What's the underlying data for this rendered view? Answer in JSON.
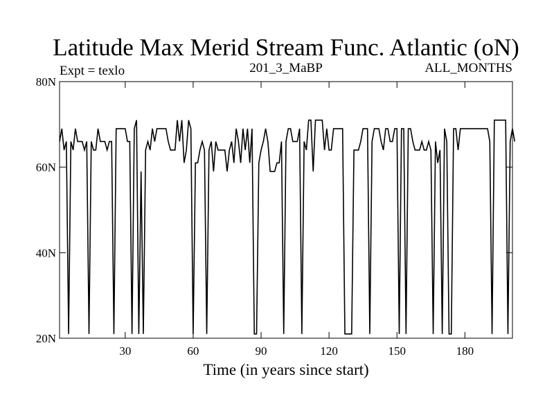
{
  "chart_data": {
    "type": "line",
    "title": "Latitude Max Merid Stream Func. Atlantic (oN)",
    "left_label": "Expt = texlo",
    "center_label": "201_3_MaBP",
    "right_label": "ALL_MONTHS",
    "xlabel": "Time (in years since start)",
    "ylabel": "",
    "xlim": [
      1,
      201
    ],
    "ylim": [
      20,
      80
    ],
    "x_ticks": [
      30,
      60,
      90,
      120,
      150,
      180
    ],
    "y_ticks": [
      20,
      40,
      60,
      80
    ],
    "y_tick_labels": [
      "20N",
      "40N",
      "60N",
      "80N"
    ],
    "grid": false,
    "series": [
      {
        "values": [
          66,
          69,
          64,
          66,
          21,
          66,
          64,
          69,
          66,
          66,
          66,
          64,
          66,
          21,
          66,
          64,
          64,
          69,
          66,
          66,
          66,
          64,
          66,
          66,
          21,
          69,
          69,
          69,
          69,
          69,
          66,
          66,
          21,
          69,
          71,
          21,
          59,
          21,
          64,
          66,
          64,
          69,
          66,
          69,
          69,
          69,
          69,
          69,
          66,
          64,
          64,
          64,
          71,
          66,
          71,
          61,
          64,
          71,
          69,
          21,
          61,
          61,
          64,
          66,
          64,
          21,
          64,
          66,
          59,
          66,
          64,
          64,
          64,
          64,
          59,
          64,
          66,
          61,
          69,
          66,
          61,
          69,
          64,
          69,
          61,
          69,
          21,
          21,
          61,
          64,
          66,
          69,
          66,
          59,
          59,
          59,
          61,
          61,
          66,
          21,
          66,
          69,
          69,
          66,
          66,
          66,
          69,
          21,
          66,
          64,
          71,
          71,
          59,
          71,
          71,
          71,
          71,
          64,
          69,
          64,
          64,
          69,
          69,
          69,
          69,
          69,
          21,
          21,
          21,
          21,
          64,
          64,
          64,
          66,
          69,
          69,
          69,
          21,
          66,
          69,
          69,
          69,
          66,
          64,
          69,
          69,
          66,
          66,
          69,
          69,
          21,
          69,
          69,
          21,
          69,
          69,
          66,
          64,
          64,
          64,
          66,
          64,
          64,
          66,
          64,
          21,
          66,
          61,
          64,
          21,
          69,
          66,
          21,
          21,
          69,
          69,
          64,
          69,
          69,
          69,
          69,
          69,
          69,
          69,
          69,
          69,
          69,
          69,
          69,
          69,
          66,
          21,
          71,
          71,
          71,
          71,
          71,
          71,
          21,
          66,
          69,
          66
        ]
      }
    ]
  }
}
